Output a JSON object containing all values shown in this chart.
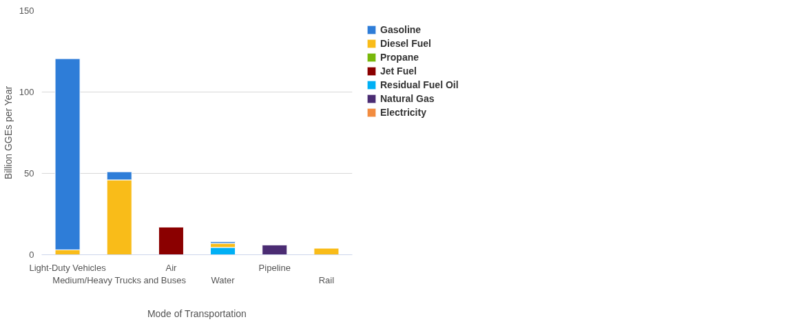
{
  "chart_data": {
    "type": "bar",
    "stacked": true,
    "xlabel": "Mode of Transportation",
    "ylabel": "Billion GGEs per Year",
    "categories": [
      "Light-Duty Vehicles",
      "Medium/Heavy Trucks and Buses",
      "Air",
      "Water",
      "Pipeline",
      "Rail"
    ],
    "series": [
      {
        "name": "Electricity",
        "color": "#f28c40",
        "values": [
          null,
          null,
          null,
          null,
          null,
          null
        ]
      },
      {
        "name": "Natural Gas",
        "color": "#4b2c73",
        "values": [
          null,
          null,
          null,
          null,
          6,
          null
        ]
      },
      {
        "name": "Residual Fuel Oil",
        "color": "#00b0f5",
        "values": [
          null,
          null,
          null,
          4.5,
          null,
          null
        ]
      },
      {
        "name": "Jet Fuel",
        "color": "#8b0000",
        "values": [
          null,
          null,
          17,
          null,
          null,
          null
        ]
      },
      {
        "name": "Propane",
        "color": "#78b80a",
        "values": [
          null,
          null,
          null,
          null,
          null,
          null
        ]
      },
      {
        "name": "Diesel Fuel",
        "color": "#f9bc19",
        "values": [
          3,
          46,
          null,
          2.5,
          null,
          4
        ]
      },
      {
        "name": "Gasoline",
        "color": "#2e7dd8",
        "values": [
          117.5,
          5,
          null,
          1,
          null,
          null
        ]
      }
    ],
    "ylim": [
      0,
      150
    ],
    "yticks": [
      0,
      50,
      100,
      150
    ],
    "grid": "y",
    "legend": "right"
  }
}
